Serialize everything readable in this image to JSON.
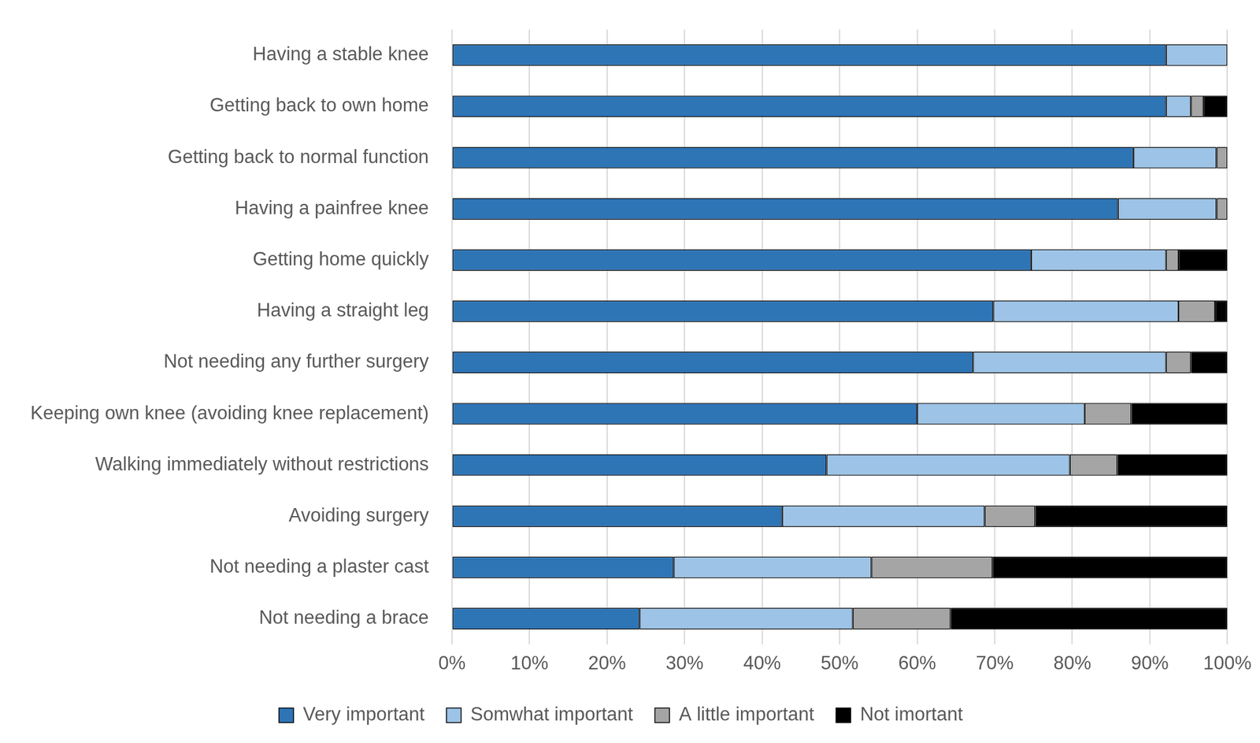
{
  "chart_data": {
    "type": "bar",
    "orientation": "horizontal",
    "stacked": true,
    "grid": true,
    "legend": "bottom",
    "categories": [
      "Having a stable knee",
      "Getting back to own home",
      "Getting back to normal function",
      "Having a painfree knee",
      "Getting home quickly",
      "Having a straight leg",
      "Not needing any further surgery",
      "Keeping own knee (avoiding knee replacement)",
      "Walking immediately without restrictions",
      "Avoiding surgery",
      "Not needing a plaster cast",
      "Not needing a brace"
    ],
    "series": [
      {
        "name": "Very important",
        "color": "#2E75B6",
        "values": [
          92.1,
          92.1,
          87.9,
          85.9,
          74.7,
          69.8,
          67.2,
          60.0,
          48.3,
          42.6,
          28.6,
          24.2
        ]
      },
      {
        "name": "Somwhat important",
        "color": "#9DC3E6",
        "values": [
          7.9,
          3.2,
          10.7,
          12.7,
          17.4,
          23.9,
          24.9,
          21.6,
          31.4,
          26.1,
          25.5,
          27.5
        ]
      },
      {
        "name": "A little important",
        "color": "#A5A5A5",
        "values": [
          0,
          1.6,
          1.4,
          1.4,
          1.6,
          4.7,
          3.2,
          6.0,
          6.1,
          6.5,
          15.6,
          12.6
        ]
      },
      {
        "name": "Not imortant",
        "color": "#000000",
        "values": [
          0,
          3.1,
          0,
          0,
          6.3,
          1.6,
          4.7,
          12.4,
          14.2,
          24.8,
          30.3,
          35.7
        ]
      }
    ],
    "xlim": [
      0,
      100
    ],
    "xticks": [
      {
        "value": 0,
        "label": "0%"
      },
      {
        "value": 10,
        "label": "10%"
      },
      {
        "value": 20,
        "label": "20%"
      },
      {
        "value": 30,
        "label": "30%"
      },
      {
        "value": 40,
        "label": "40%"
      },
      {
        "value": 50,
        "label": "50%"
      },
      {
        "value": 60,
        "label": "60%"
      },
      {
        "value": 70,
        "label": "70%"
      },
      {
        "value": 80,
        "label": "80%"
      },
      {
        "value": 90,
        "label": "90%"
      },
      {
        "value": 100,
        "label": "100%"
      }
    ]
  }
}
